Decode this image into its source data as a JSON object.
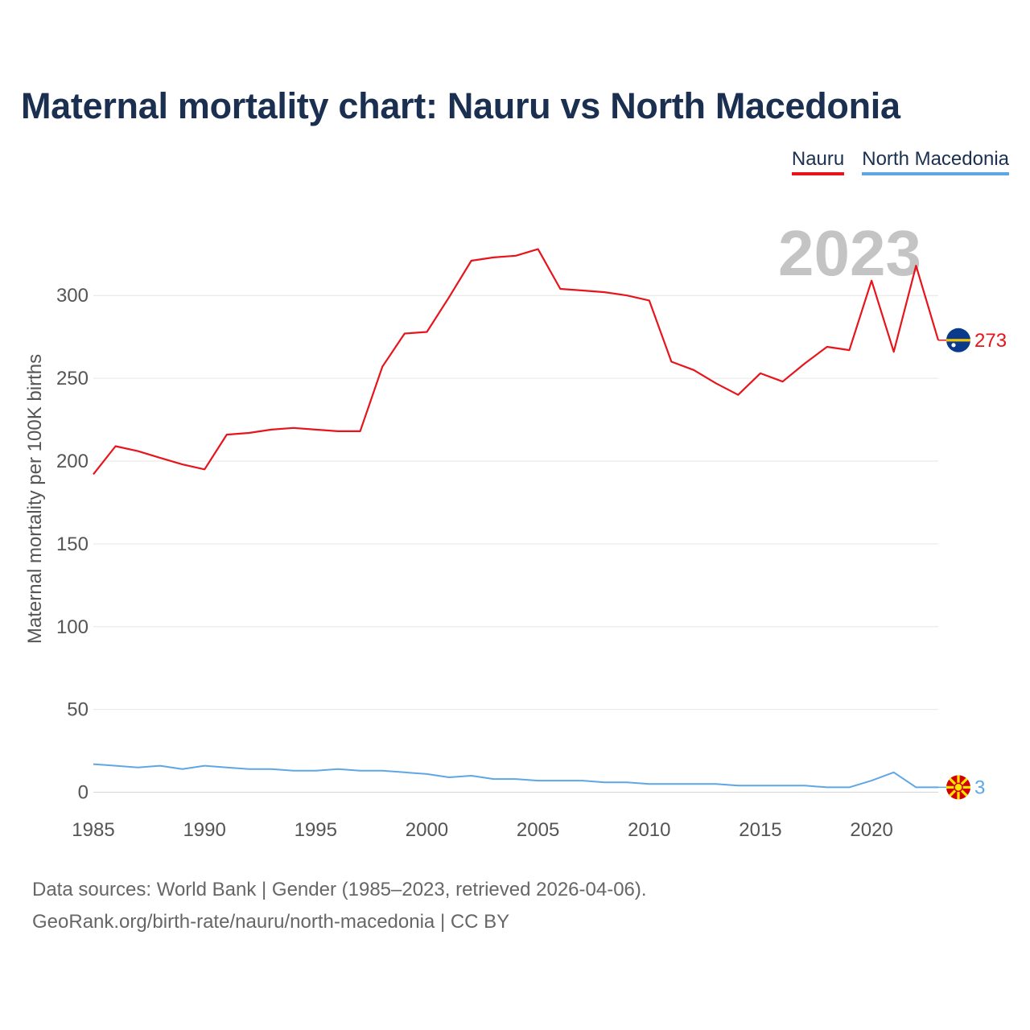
{
  "chart_data": {
    "type": "line",
    "title": "Maternal mortality chart: Nauru vs North Macedonia",
    "xlabel": "",
    "ylabel": "Maternal mortality per 100K births",
    "current_year": "2023",
    "x": [
      1985,
      1986,
      1987,
      1988,
      1989,
      1990,
      1991,
      1992,
      1993,
      1994,
      1995,
      1996,
      1997,
      1998,
      1999,
      2000,
      2001,
      2002,
      2003,
      2004,
      2005,
      2006,
      2007,
      2008,
      2009,
      2010,
      2011,
      2012,
      2013,
      2014,
      2015,
      2016,
      2017,
      2018,
      2019,
      2020,
      2021,
      2022,
      2023
    ],
    "xlim": [
      1985,
      2023
    ],
    "ylim": [
      -8,
      338
    ],
    "x_ticks": [
      1985,
      1990,
      1995,
      2000,
      2005,
      2010,
      2015,
      2020
    ],
    "y_ticks": [
      0,
      50,
      100,
      150,
      200,
      250,
      300
    ],
    "grid": true,
    "legend_position": "top-right",
    "series": [
      {
        "name": "Nauru",
        "color": "#e8141b",
        "end_label": "273",
        "flag": "nauru-flag-icon",
        "values": [
          192,
          209,
          206,
          202,
          198,
          195,
          216,
          217,
          219,
          220,
          219,
          218,
          218,
          257,
          277,
          278,
          299,
          321,
          323,
          324,
          328,
          304,
          303,
          302,
          300,
          297,
          260,
          255,
          247,
          240,
          253,
          248,
          259,
          269,
          267,
          309,
          266,
          318,
          273
        ]
      },
      {
        "name": "North Macedonia",
        "color": "#5ea7e6",
        "end_label": "3",
        "flag": "north-macedonia-flag-icon",
        "values": [
          17,
          16,
          15,
          16,
          14,
          16,
          15,
          14,
          14,
          13,
          13,
          14,
          13,
          13,
          12,
          11,
          9,
          10,
          8,
          8,
          7,
          7,
          7,
          6,
          6,
          5,
          5,
          5,
          5,
          4,
          4,
          4,
          4,
          3,
          3,
          7,
          12,
          3,
          3
        ]
      }
    ]
  },
  "footer": {
    "line1": "Data sources: World Bank | Gender (1985–2023, retrieved 2026-04-06).",
    "line2": "GeoRank.org/birth-rate/nauru/north-macedonia | CC BY"
  }
}
